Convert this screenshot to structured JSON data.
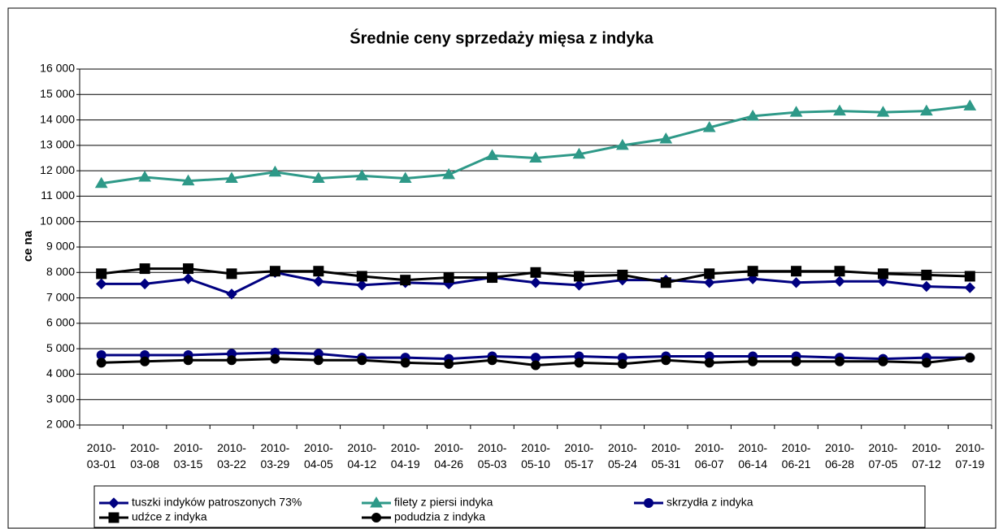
{
  "chart_data": {
    "type": "line",
    "title": "Średnie ceny sprzedaży mięsa z indyka",
    "y_label": "ce na",
    "categories": [
      "2010-03-01",
      "2010-03-08",
      "2010-03-15",
      "2010-03-22",
      "2010-03-29",
      "2010-04-05",
      "2010-04-12",
      "2010-04-19",
      "2010-04-26",
      "2010-05-03",
      "2010-05-10",
      "2010-05-17",
      "2010-05-24",
      "2010-05-31",
      "2010-06-07",
      "2010-06-14",
      "2010-06-21",
      "2010-06-28",
      "2010-07-05",
      "2010-07-12",
      "2010-07-19"
    ],
    "series": [
      {
        "name": "tuszki indyków  patroszonych 73%",
        "color": "#000080",
        "marker": "diamond",
        "values": [
          7550,
          7550,
          7750,
          7150,
          8000,
          7650,
          7500,
          7600,
          7550,
          7800,
          7600,
          7500,
          7700,
          7700,
          7600,
          7750,
          7600,
          7650,
          7650,
          7450,
          7400
        ]
      },
      {
        "name": "filety z piersi indyka",
        "color": "#2e9988",
        "marker": "triangle",
        "values": [
          11500,
          11750,
          11600,
          11700,
          11950,
          11700,
          11800,
          11700,
          11850,
          12600,
          12500,
          12650,
          13000,
          13250,
          13700,
          14150,
          14300,
          14350,
          14300,
          14350,
          14550
        ]
      },
      {
        "name": "skrzydła z indyka",
        "color": "#000080",
        "marker": "circle",
        "values": [
          4750,
          4750,
          4750,
          4800,
          4850,
          4800,
          4650,
          4650,
          4600,
          4700,
          4650,
          4700,
          4650,
          4700,
          4700,
          4700,
          4700,
          4650,
          4600,
          4650,
          4650
        ]
      },
      {
        "name": "udźce z indyka",
        "color": "#000000",
        "marker": "square",
        "values": [
          7950,
          8150,
          8150,
          7950,
          8050,
          8050,
          7850,
          7700,
          7800,
          7800,
          8000,
          7850,
          7900,
          7600,
          7950,
          8050,
          8050,
          8050,
          7950,
          7900,
          7850
        ]
      },
      {
        "name": "podudzia z indyka",
        "color": "#000000",
        "marker": "circle",
        "values": [
          4450,
          4500,
          4550,
          4550,
          4600,
          4550,
          4550,
          4450,
          4400,
          4550,
          4350,
          4450,
          4400,
          4550,
          4450,
          4500,
          4500,
          4500,
          4500,
          4450,
          4650
        ]
      }
    ],
    "ylim": [
      2000,
      16000
    ],
    "yticks": [
      {
        "value": 2000,
        "label": "2 000"
      },
      {
        "value": 3000,
        "label": "3 000"
      },
      {
        "value": 4000,
        "label": "4 000"
      },
      {
        "value": 5000,
        "label": "5 000"
      },
      {
        "value": 6000,
        "label": "6 000"
      },
      {
        "value": 7000,
        "label": "7 000"
      },
      {
        "value": 8000,
        "label": "8 000"
      },
      {
        "value": 9000,
        "label": "9 000"
      },
      {
        "value": 10000,
        "label": "10 000"
      },
      {
        "value": 11000,
        "label": "11 000"
      },
      {
        "value": 12000,
        "label": "12 000"
      },
      {
        "value": 13000,
        "label": "13 000"
      },
      {
        "value": 14000,
        "label": "14 000"
      },
      {
        "value": 15000,
        "label": "15 000"
      },
      {
        "value": 16000,
        "label": "16 000"
      }
    ],
    "grid": true
  }
}
